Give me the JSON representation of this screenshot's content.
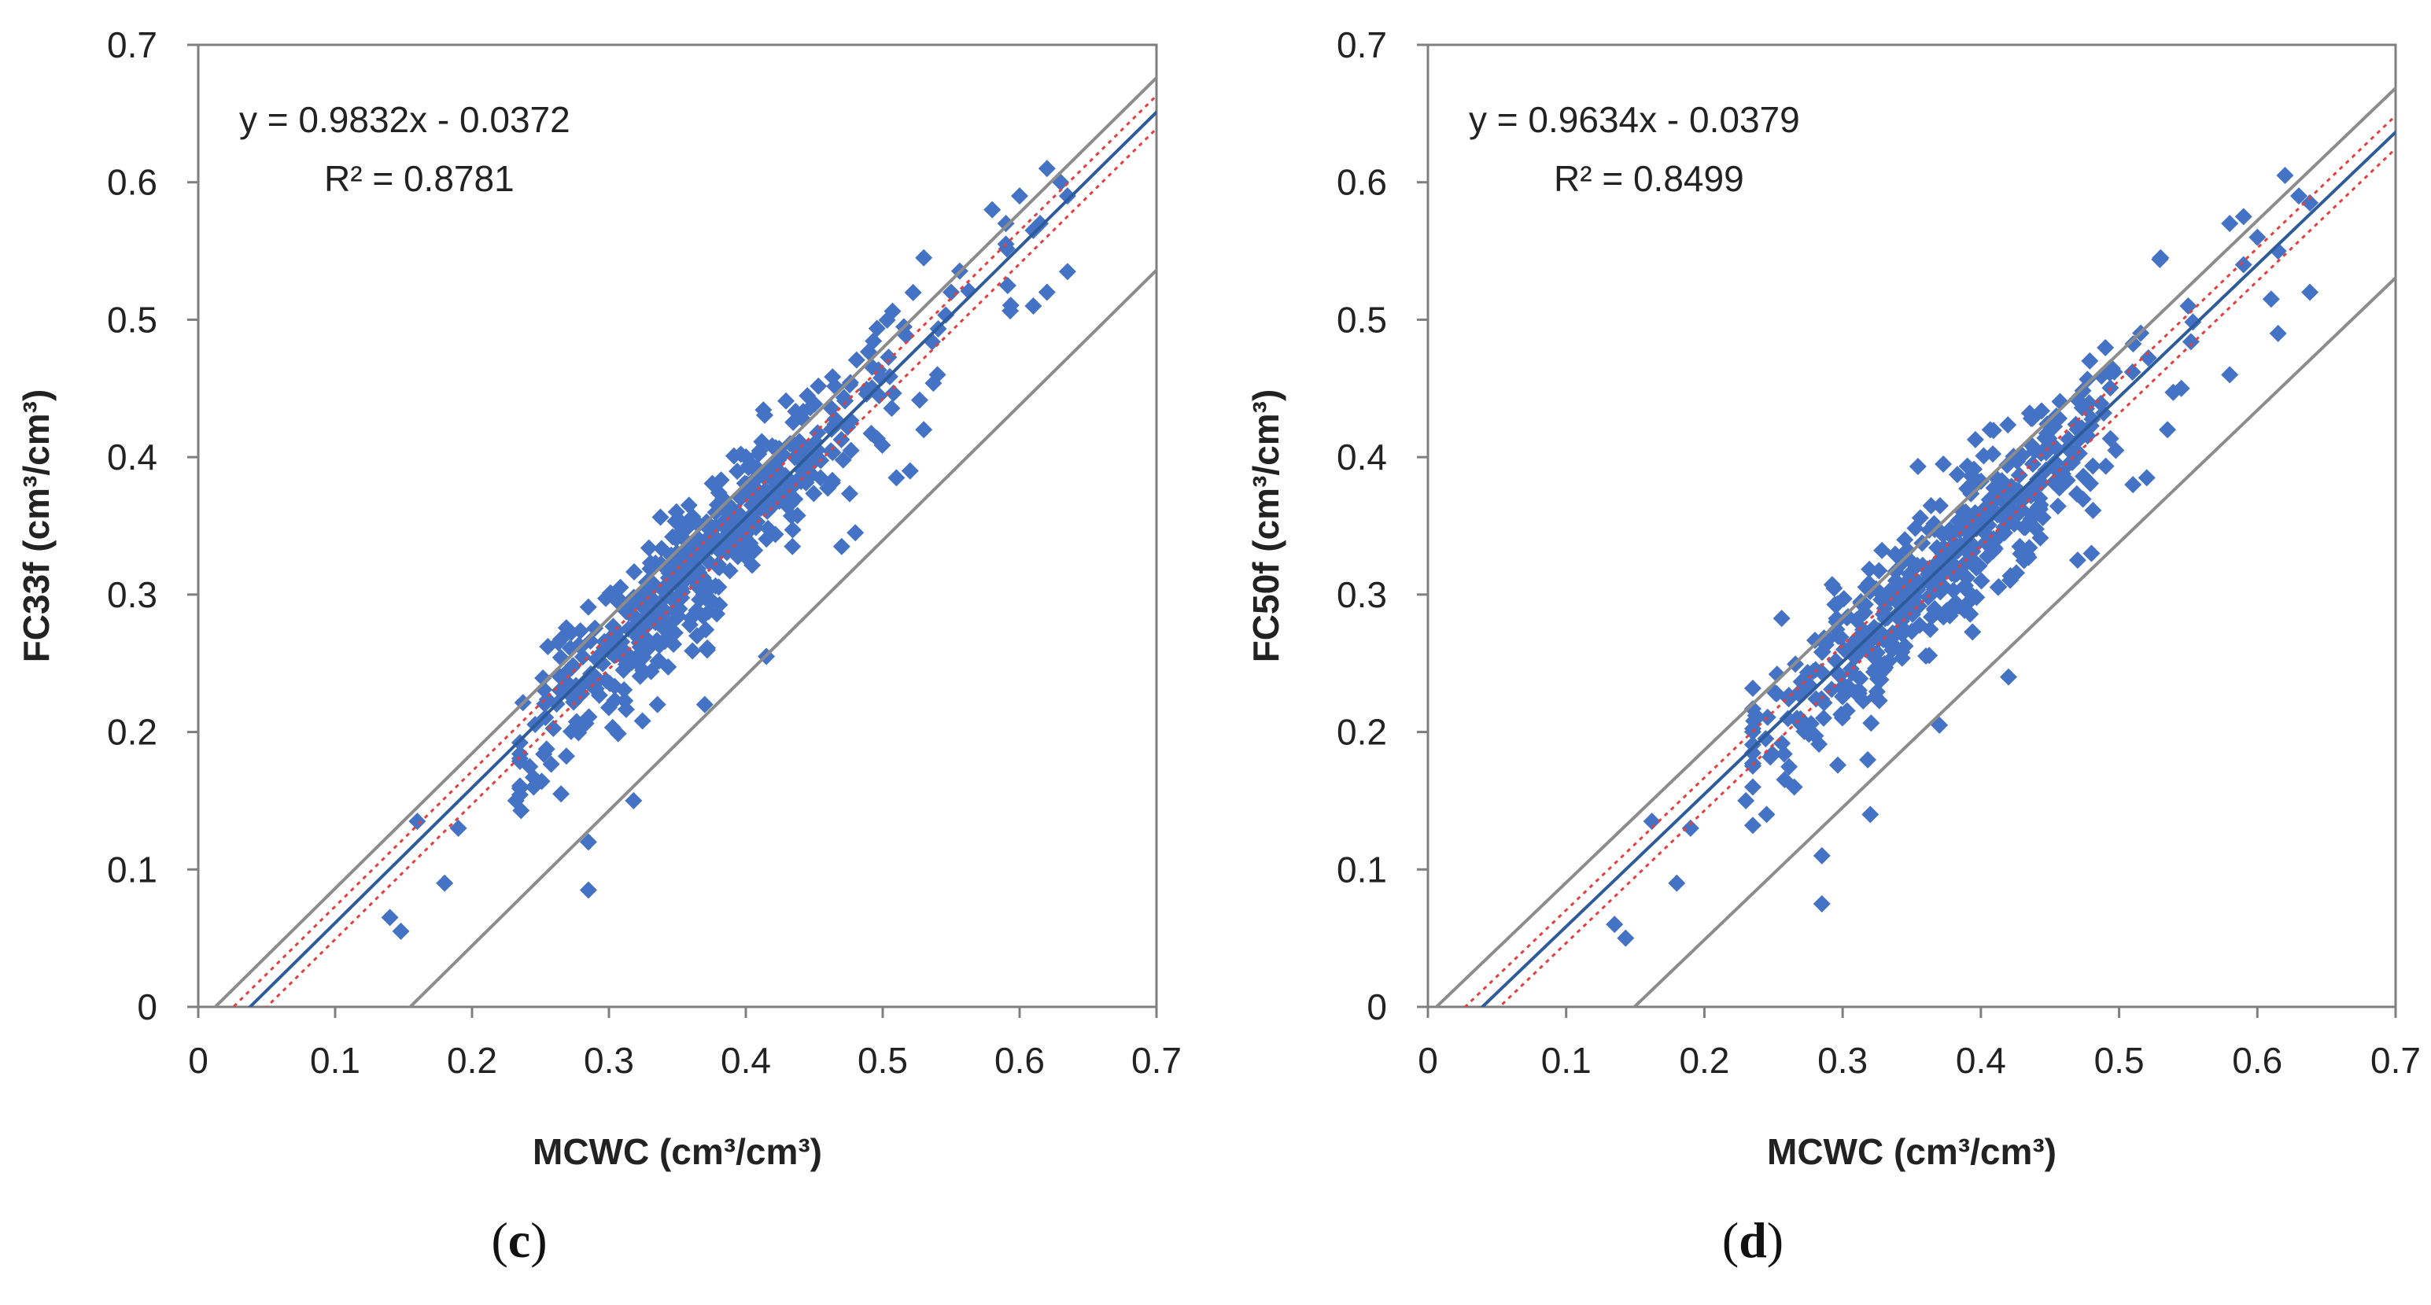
{
  "chart_data": [
    {
      "type": "scatter",
      "panel_label": "c",
      "xlabel": "MCWC (cm³/cm³)",
      "ylabel": "FC33f (cm³/cm³)",
      "xlim": [
        0,
        0.7
      ],
      "ylim": [
        0,
        0.7
      ],
      "xticks": [
        "0",
        "0.1",
        "0.2",
        "0.3",
        "0.4",
        "0.5",
        "0.6",
        "0.7"
      ],
      "yticks": [
        "0",
        "0.1",
        "0.2",
        "0.3",
        "0.4",
        "0.5",
        "0.6",
        "0.7"
      ],
      "equation": "y = 0.9832x - 0.0372",
      "r_squared": "R² = 0.8781",
      "colors": {
        "points": "#4472c4",
        "fit": "#2e5c9a",
        "confidence": "#e04040",
        "bounds": "#8c8c8c",
        "axis": "#7f7f7f"
      },
      "regression": {
        "slope": 0.9832,
        "intercept": -0.0372
      },
      "confidence_offset": 0.012,
      "prediction_offsets": [
        0.025,
        -0.115
      ],
      "point_count": 480,
      "seed": 7,
      "spread": 0.026,
      "outliers": [
        [
          0.14,
          0.065
        ],
        [
          0.148,
          0.055
        ],
        [
          0.18,
          0.09
        ],
        [
          0.16,
          0.135
        ],
        [
          0.19,
          0.13
        ],
        [
          0.285,
          0.12
        ],
        [
          0.285,
          0.085
        ],
        [
          0.318,
          0.15
        ],
        [
          0.232,
          0.15
        ],
        [
          0.245,
          0.16
        ],
        [
          0.265,
          0.155
        ],
        [
          0.37,
          0.22
        ],
        [
          0.415,
          0.255
        ],
        [
          0.48,
          0.345
        ],
        [
          0.47,
          0.335
        ],
        [
          0.51,
          0.385
        ],
        [
          0.52,
          0.39
        ],
        [
          0.53,
          0.42
        ],
        [
          0.54,
          0.46
        ],
        [
          0.53,
          0.545
        ],
        [
          0.55,
          0.52
        ],
        [
          0.58,
          0.58
        ],
        [
          0.59,
          0.57
        ],
        [
          0.6,
          0.59
        ],
        [
          0.61,
          0.565
        ],
        [
          0.62,
          0.61
        ],
        [
          0.63,
          0.6
        ],
        [
          0.635,
          0.59
        ],
        [
          0.62,
          0.52
        ],
        [
          0.635,
          0.535
        ],
        [
          0.61,
          0.51
        ],
        [
          0.59,
          0.555
        ],
        [
          0.615,
          0.57
        ]
      ]
    },
    {
      "type": "scatter",
      "panel_label": "d",
      "xlabel": "MCWC (cm³/cm³)",
      "ylabel": "FC50f (cm³/cm³)",
      "xlim": [
        0,
        0.7
      ],
      "ylim": [
        0,
        0.7
      ],
      "xticks": [
        "0",
        "0.1",
        "0.2",
        "0.3",
        "0.4",
        "0.5",
        "0.6",
        "0.7"
      ],
      "yticks": [
        "0",
        "0.1",
        "0.2",
        "0.3",
        "0.4",
        "0.5",
        "0.6",
        "0.7"
      ],
      "equation": "y = 0.9634x - 0.0379",
      "r_squared": "R² = 0.8499",
      "colors": {
        "points": "#4472c4",
        "fit": "#2e5c9a",
        "confidence": "#e04040",
        "bounds": "#8c8c8c",
        "axis": "#7f7f7f"
      },
      "regression": {
        "slope": 0.9634,
        "intercept": -0.0379
      },
      "confidence_offset": 0.012,
      "prediction_offsets": [
        0.032,
        -0.106
      ],
      "point_count": 480,
      "seed": 13,
      "spread": 0.027,
      "outliers": [
        [
          0.135,
          0.06
        ],
        [
          0.143,
          0.05
        ],
        [
          0.18,
          0.09
        ],
        [
          0.162,
          0.135
        ],
        [
          0.19,
          0.13
        ],
        [
          0.285,
          0.11
        ],
        [
          0.285,
          0.075
        ],
        [
          0.32,
          0.14
        ],
        [
          0.23,
          0.15
        ],
        [
          0.245,
          0.14
        ],
        [
          0.265,
          0.16
        ],
        [
          0.37,
          0.205
        ],
        [
          0.42,
          0.24
        ],
        [
          0.48,
          0.33
        ],
        [
          0.47,
          0.325
        ],
        [
          0.51,
          0.38
        ],
        [
          0.52,
          0.385
        ],
        [
          0.535,
          0.42
        ],
        [
          0.545,
          0.45
        ],
        [
          0.53,
          0.545
        ],
        [
          0.55,
          0.51
        ],
        [
          0.58,
          0.57
        ],
        [
          0.59,
          0.575
        ],
        [
          0.6,
          0.56
        ],
        [
          0.615,
          0.55
        ],
        [
          0.62,
          0.605
        ],
        [
          0.63,
          0.59
        ],
        [
          0.638,
          0.585
        ],
        [
          0.615,
          0.49
        ],
        [
          0.638,
          0.52
        ],
        [
          0.58,
          0.46
        ],
        [
          0.59,
          0.54
        ],
        [
          0.61,
          0.515
        ]
      ]
    }
  ]
}
